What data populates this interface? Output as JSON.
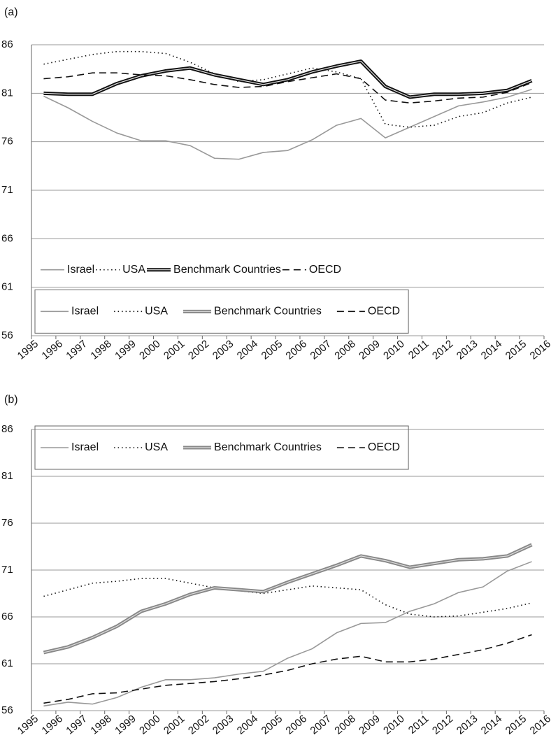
{
  "chart_data": [
    {
      "type": "line",
      "label": "(a)",
      "xlim": [
        1995,
        2016
      ],
      "xticks": [
        1995,
        1996,
        1997,
        1998,
        1999,
        2000,
        2001,
        2002,
        2003,
        2004,
        2005,
        2006,
        2007,
        2008,
        2009,
        2010,
        2011,
        2012,
        2013,
        2014,
        2015,
        2016
      ],
      "x": [
        1995.5,
        1996.5,
        1997.5,
        1998.5,
        1999.5,
        2000.5,
        2001.5,
        2002.5,
        2003.5,
        2004.5,
        2005.5,
        2006.5,
        2007.5,
        2008.5,
        2009.5,
        2010.5,
        2011.5,
        2012.5,
        2013.5,
        2014.5,
        2015.5
      ],
      "ylim": [
        56,
        86
      ],
      "yticks": [
        56,
        61,
        66,
        71,
        76,
        81,
        86
      ],
      "grid": true,
      "legends": [
        {
          "position": "lower-left",
          "box": false
        },
        {
          "position": "bottom-left",
          "box": true
        }
      ],
      "series": [
        {
          "name": "Israel",
          "color": "#999999",
          "style": "solid",
          "values": [
            80.7,
            79.5,
            78.1,
            76.9,
            76.1,
            76.1,
            75.6,
            74.3,
            74.2,
            74.9,
            75.1,
            76.2,
            77.7,
            78.4,
            76.4,
            77.5,
            78.6,
            79.7,
            80.1,
            80.6,
            81.4
          ]
        },
        {
          "name": "USA",
          "color": "#111111",
          "style": "dotted",
          "values": [
            84.0,
            84.5,
            85.0,
            85.3,
            85.3,
            85.1,
            84.2,
            83.0,
            82.2,
            82.4,
            83.0,
            83.6,
            83.2,
            82.5,
            77.8,
            77.5,
            77.7,
            78.6,
            79.0,
            80.0,
            80.6
          ]
        },
        {
          "name": "Benchmark Countries",
          "color": "#111111",
          "style": "double",
          "values": [
            81.0,
            80.9,
            80.9,
            82.0,
            82.8,
            83.3,
            83.6,
            82.9,
            82.4,
            81.9,
            82.4,
            83.2,
            83.8,
            84.3,
            81.7,
            80.6,
            80.9,
            80.9,
            81.0,
            81.3,
            82.3
          ]
        },
        {
          "name": "OECD",
          "color": "#111111",
          "style": "dashed",
          "values": [
            82.5,
            82.7,
            83.1,
            83.1,
            82.9,
            82.8,
            82.4,
            81.9,
            81.6,
            81.7,
            82.2,
            82.6,
            83.0,
            82.5,
            80.3,
            80.0,
            80.2,
            80.5,
            80.6,
            81.1,
            82.1
          ]
        }
      ]
    },
    {
      "type": "line",
      "label": "(b)",
      "xlim": [
        1995,
        2016
      ],
      "xticks": [
        1995,
        1996,
        1997,
        1998,
        1999,
        2000,
        2001,
        2002,
        2003,
        2004,
        2005,
        2006,
        2007,
        2008,
        2009,
        2010,
        2011,
        2012,
        2013,
        2014,
        2015,
        2016
      ],
      "x": [
        1995.5,
        1996.5,
        1997.5,
        1998.5,
        1999.5,
        2000.5,
        2001.5,
        2002.5,
        2003.5,
        2004.5,
        2005.5,
        2006.5,
        2007.5,
        2008.5,
        2009.5,
        2010.5,
        2011.5,
        2012.5,
        2013.5,
        2014.5,
        2015.5
      ],
      "ylim": [
        56,
        86
      ],
      "yticks": [
        56,
        61,
        66,
        71,
        76,
        81,
        86
      ],
      "grid": true,
      "legends": [
        {
          "position": "top-left",
          "box": true
        }
      ],
      "series": [
        {
          "name": "Israel",
          "color": "#999999",
          "style": "solid",
          "values": [
            56.5,
            56.9,
            56.7,
            57.4,
            58.5,
            59.3,
            59.3,
            59.5,
            59.9,
            60.2,
            61.6,
            62.6,
            64.3,
            65.3,
            65.4,
            66.6,
            67.4,
            68.6,
            69.2,
            70.9,
            71.9
          ]
        },
        {
          "name": "USA",
          "color": "#111111",
          "style": "dotted",
          "values": [
            68.2,
            68.9,
            69.6,
            69.8,
            70.1,
            70.1,
            69.6,
            69.1,
            68.8,
            68.5,
            68.9,
            69.3,
            69.1,
            68.9,
            67.3,
            66.3,
            66.0,
            66.1,
            66.5,
            66.9,
            67.5
          ]
        },
        {
          "name": "Benchmark Countries",
          "color": "#888888",
          "style": "double",
          "values": [
            62.2,
            62.8,
            63.8,
            65.0,
            66.6,
            67.4,
            68.4,
            69.1,
            68.9,
            68.7,
            69.7,
            70.6,
            71.5,
            72.5,
            72.0,
            71.3,
            71.7,
            72.1,
            72.2,
            72.5,
            73.7
          ]
        },
        {
          "name": "OECD",
          "color": "#111111",
          "style": "dashed",
          "values": [
            56.8,
            57.2,
            57.8,
            57.9,
            58.3,
            58.7,
            58.9,
            59.1,
            59.4,
            59.8,
            60.3,
            61.0,
            61.5,
            61.8,
            61.2,
            61.2,
            61.5,
            62.0,
            62.5,
            63.2,
            64.1
          ]
        }
      ]
    }
  ]
}
